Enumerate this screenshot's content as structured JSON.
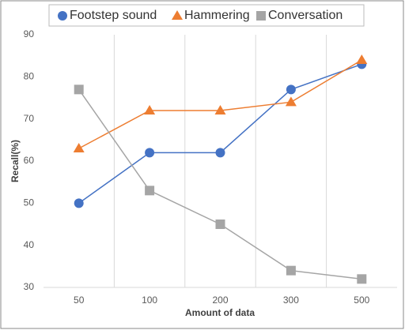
{
  "chart_data": {
    "type": "line",
    "categories": [
      "50",
      "100",
      "200",
      "300",
      "500"
    ],
    "series": [
      {
        "name": "Footstep sound",
        "color": "#4472c4",
        "marker": "circle",
        "values": [
          50,
          62,
          62,
          77,
          83
        ]
      },
      {
        "name": "Hammering",
        "color": "#ed7d31",
        "marker": "triangle",
        "values": [
          63,
          72,
          72,
          74,
          84
        ]
      },
      {
        "name": "Conversation",
        "color": "#a5a5a5",
        "marker": "square",
        "values": [
          77,
          53,
          45,
          34,
          32
        ]
      }
    ],
    "ylim": [
      30,
      90
    ],
    "yticks": [
      30,
      40,
      50,
      60,
      70,
      80,
      90
    ],
    "x_label": "Amount of data",
    "y_label": "Recall(%)",
    "xgrid": true,
    "legend": "top"
  }
}
